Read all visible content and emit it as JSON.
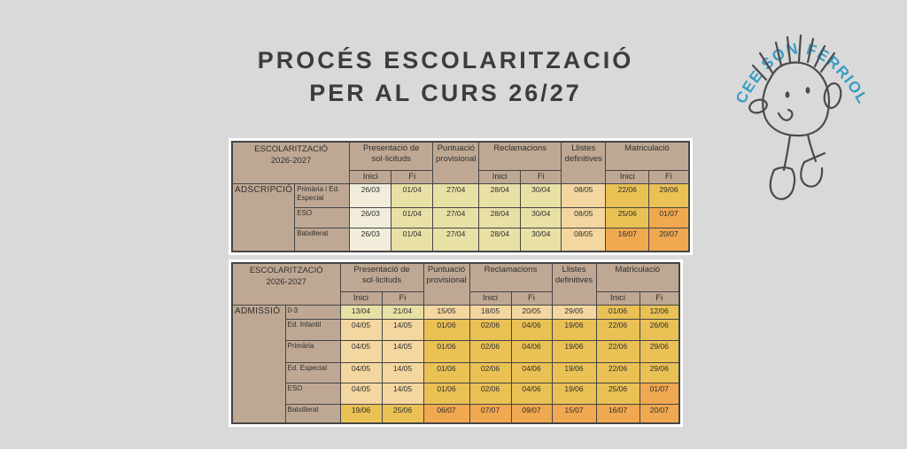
{
  "page": {
    "background": "#d9d9d9"
  },
  "title": {
    "line1": "PROCÉS ESCOLARITZACIÓ",
    "line2": "PER AL CURS 26/27"
  },
  "logo": {
    "arc_text": "CEE SON FERRIOL",
    "arc_color": "#3a9cc4",
    "doodle_color": "#4a4a4a"
  },
  "palette": {
    "tan": "#bfa893",
    "cream": "#f2ecdb",
    "pale_yellow": "#e9e0a6",
    "peach": "#f3d6a0",
    "gold": "#e9c155",
    "orange": "#f0a851",
    "border": "#454545",
    "frame_bg": "#ffffff"
  },
  "header": {
    "corner_line1": "ESCOLARITZACIÓ",
    "corner_line2": "2026-2027",
    "sub_inici": "Inici",
    "sub_fi": "Fi",
    "groups": [
      {
        "label": "Presentació de sol·licituds",
        "split": true
      },
      {
        "label": "Puntuació provisional",
        "split": false
      },
      {
        "label": "Reclamacions",
        "split": true
      },
      {
        "label": "Llistes definitives",
        "split": false
      },
      {
        "label": "Matriculació",
        "split": true
      }
    ]
  },
  "tables": [
    {
      "section": "ADSCRIPCIÓ",
      "rows": [
        {
          "label": "Primària i Ed. Especial",
          "values": [
            "26/03",
            "01/04",
            "27/04",
            "28/04",
            "30/04",
            "08/05",
            "22/06",
            "29/06"
          ],
          "colors": [
            "cream",
            "pale_yellow",
            "pale_yellow",
            "pale_yellow",
            "pale_yellow",
            "peach",
            "gold",
            "gold"
          ]
        },
        {
          "label": "ESO",
          "values": [
            "26/03",
            "01/04",
            "27/04",
            "28/04",
            "30/04",
            "08/05",
            "25/06",
            "01/07"
          ],
          "colors": [
            "cream",
            "pale_yellow",
            "pale_yellow",
            "pale_yellow",
            "pale_yellow",
            "peach",
            "gold",
            "orange"
          ]
        },
        {
          "label": "Batxillerat",
          "values": [
            "26/03",
            "01/04",
            "27/04",
            "28/04",
            "30/04",
            "08/05",
            "16/07",
            "20/07"
          ],
          "colors": [
            "cream",
            "pale_yellow",
            "pale_yellow",
            "pale_yellow",
            "pale_yellow",
            "peach",
            "orange",
            "orange"
          ]
        }
      ]
    },
    {
      "section": "ADMISSIÓ",
      "rows": [
        {
          "label": "0-3",
          "values": [
            "13/04",
            "21/04",
            "15/05",
            "18/05",
            "20/05",
            "29/05",
            "01/06",
            "12/06"
          ],
          "colors": [
            "pale_yellow",
            "pale_yellow",
            "peach",
            "peach",
            "peach",
            "peach",
            "gold",
            "gold"
          ]
        },
        {
          "label": "Ed. Infantil",
          "values": [
            "04/05",
            "14/05",
            "01/06",
            "02/06",
            "04/06",
            "19/06",
            "22/06",
            "26/06"
          ],
          "colors": [
            "peach",
            "peach",
            "gold",
            "gold",
            "gold",
            "gold",
            "gold",
            "gold"
          ]
        },
        {
          "label": "Primària",
          "values": [
            "04/05",
            "14/05",
            "01/06",
            "02/06",
            "04/06",
            "19/06",
            "22/06",
            "29/06"
          ],
          "colors": [
            "peach",
            "peach",
            "gold",
            "gold",
            "gold",
            "gold",
            "gold",
            "gold"
          ]
        },
        {
          "label": "Ed. Especial",
          "values": [
            "04/05",
            "14/05",
            "01/06",
            "02/06",
            "04/06",
            "19/06",
            "22/06",
            "29/06"
          ],
          "colors": [
            "peach",
            "peach",
            "gold",
            "gold",
            "gold",
            "gold",
            "gold",
            "gold"
          ]
        },
        {
          "label": "ESO",
          "values": [
            "04/05",
            "14/05",
            "01/06",
            "02/06",
            "04/06",
            "19/06",
            "25/06",
            "01/07"
          ],
          "colors": [
            "peach",
            "peach",
            "gold",
            "gold",
            "gold",
            "gold",
            "gold",
            "orange"
          ]
        },
        {
          "label": "Batxillerat",
          "values": [
            "19/06",
            "25/06",
            "06/07",
            "07/07",
            "09/07",
            "15/07",
            "16/07",
            "20/07"
          ],
          "colors": [
            "gold",
            "gold",
            "orange",
            "orange",
            "orange",
            "orange",
            "orange",
            "orange"
          ]
        }
      ]
    }
  ]
}
